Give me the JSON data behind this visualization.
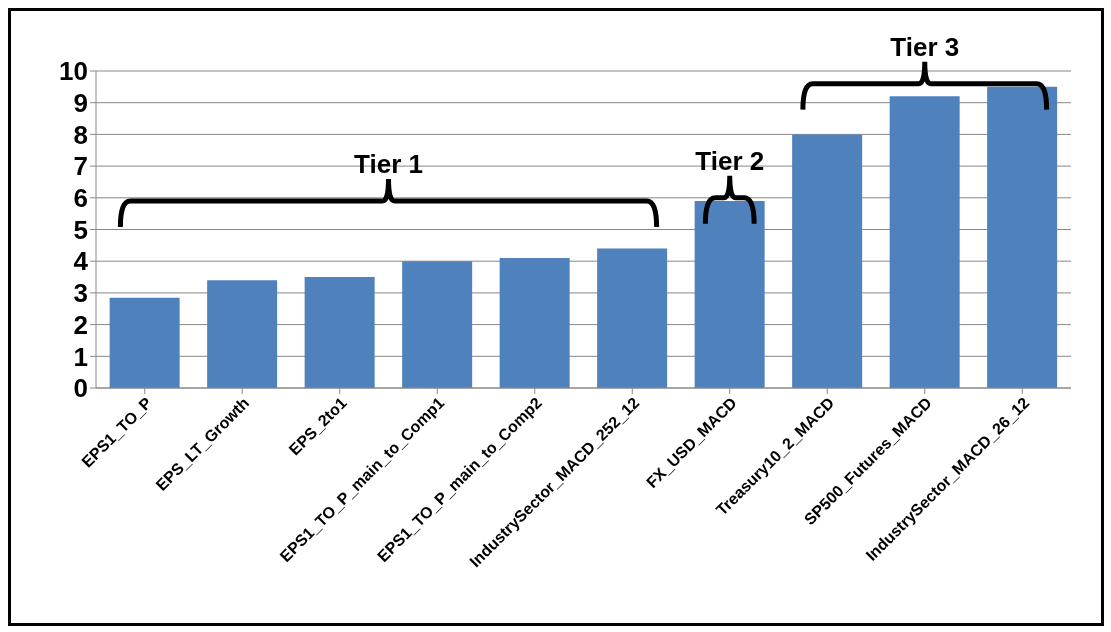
{
  "chart_data": {
    "type": "bar",
    "categories": [
      "EPS1_TO_P",
      "EPS_LT_Growth",
      "EPS_2to1",
      "EPS1_TO_P_main_to_Comp1",
      "EPS1_TO_P_main_to_Comp2",
      "IndustrySector_MACD_252_12",
      "FX_USD_MACD",
      "Treasury10_2_MACD",
      "SP500_Futures_MACD",
      "IndustrySector_MACD_26_12"
    ],
    "values": [
      2.85,
      3.4,
      3.5,
      4.0,
      4.1,
      4.4,
      5.9,
      8.0,
      9.2,
      9.5
    ],
    "color": "#4f81bd",
    "ylim": [
      0,
      10
    ],
    "yticks": [
      0,
      1,
      2,
      3,
      4,
      5,
      6,
      7,
      8,
      9,
      10
    ],
    "grid": "y",
    "legend": false,
    "annotations": [
      "Tier 1",
      "Tier 2",
      "Tier 3"
    ]
  }
}
